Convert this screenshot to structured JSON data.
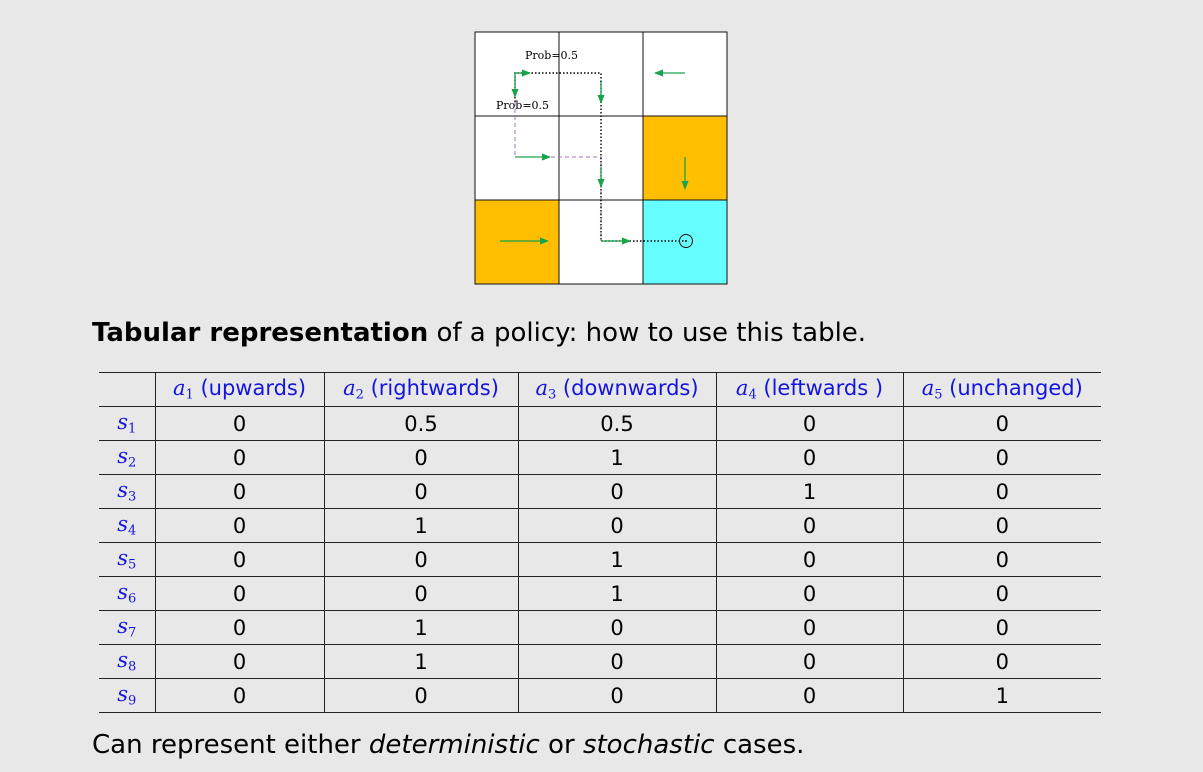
{
  "figure": {
    "colors": {
      "forbidden": "#ffbe00",
      "target": "#66ffff",
      "arrow": "#1aa34a",
      "dashed": "#a070c0",
      "dotted": "#000000"
    },
    "prob_labels": [
      "Prob=0.5",
      "Prob=0.5"
    ]
  },
  "caption": {
    "bold": "Tabular representation",
    "rest": " of a policy: how to use this table."
  },
  "table": {
    "columns": [
      {
        "symbol": "a",
        "index": "1",
        "desc": " (upwards)"
      },
      {
        "symbol": "a",
        "index": "2",
        "desc": " (rightwards)"
      },
      {
        "symbol": "a",
        "index": "3",
        "desc": " (downwards)"
      },
      {
        "symbol": "a",
        "index": "4",
        "desc": " (leftwards )"
      },
      {
        "symbol": "a",
        "index": "5",
        "desc": " (unchanged)"
      }
    ],
    "rows": [
      {
        "symbol": "s",
        "index": "1",
        "values": [
          "0",
          "0.5",
          "0.5",
          "0",
          "0"
        ]
      },
      {
        "symbol": "s",
        "index": "2",
        "values": [
          "0",
          "0",
          "1",
          "0",
          "0"
        ]
      },
      {
        "symbol": "s",
        "index": "3",
        "values": [
          "0",
          "0",
          "0",
          "1",
          "0"
        ]
      },
      {
        "symbol": "s",
        "index": "4",
        "values": [
          "0",
          "1",
          "0",
          "0",
          "0"
        ]
      },
      {
        "symbol": "s",
        "index": "5",
        "values": [
          "0",
          "0",
          "1",
          "0",
          "0"
        ]
      },
      {
        "symbol": "s",
        "index": "6",
        "values": [
          "0",
          "0",
          "1",
          "0",
          "0"
        ]
      },
      {
        "symbol": "s",
        "index": "7",
        "values": [
          "0",
          "1",
          "0",
          "0",
          "0"
        ]
      },
      {
        "symbol": "s",
        "index": "8",
        "values": [
          "0",
          "1",
          "0",
          "0",
          "0"
        ]
      },
      {
        "symbol": "s",
        "index": "9",
        "values": [
          "0",
          "0",
          "0",
          "0",
          "1"
        ]
      }
    ]
  },
  "footer": {
    "t1": "Can represent either ",
    "deterministic": "deterministic",
    "t2": " or ",
    "stochastic": "stochastic",
    "t3": " cases."
  }
}
